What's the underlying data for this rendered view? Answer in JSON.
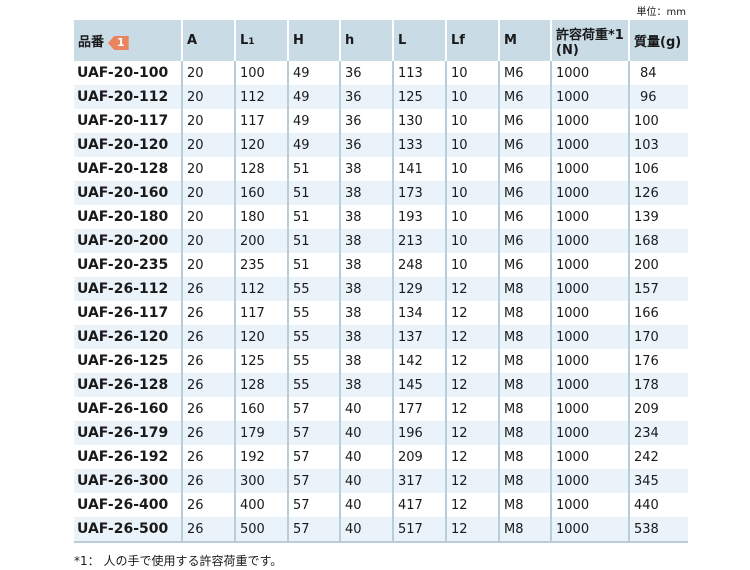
{
  "unit": "単位：mm",
  "headers": {
    "part": "品番",
    "badge": "1",
    "A": "A",
    "L1": "L",
    "L1sub": "1",
    "H": "H",
    "h": "h",
    "L": "L",
    "Lf": "Lf",
    "M": "M",
    "load": "許容荷重*1",
    "load_unit": "(N)",
    "mass": "質量(g)"
  },
  "rows": [
    [
      "UAF-20-100",
      "20",
      "100",
      "49",
      "36",
      "113",
      "10",
      "M6",
      "1000",
      "84"
    ],
    [
      "UAF-20-112",
      "20",
      "112",
      "49",
      "36",
      "125",
      "10",
      "M6",
      "1000",
      "96"
    ],
    [
      "UAF-20-117",
      "20",
      "117",
      "49",
      "36",
      "130",
      "10",
      "M6",
      "1000",
      "100"
    ],
    [
      "UAF-20-120",
      "20",
      "120",
      "49",
      "36",
      "133",
      "10",
      "M6",
      "1000",
      "103"
    ],
    [
      "UAF-20-128",
      "20",
      "128",
      "51",
      "38",
      "141",
      "10",
      "M6",
      "1000",
      "106"
    ],
    [
      "UAF-20-160",
      "20",
      "160",
      "51",
      "38",
      "173",
      "10",
      "M6",
      "1000",
      "126"
    ],
    [
      "UAF-20-180",
      "20",
      "180",
      "51",
      "38",
      "193",
      "10",
      "M6",
      "1000",
      "139"
    ],
    [
      "UAF-20-200",
      "20",
      "200",
      "51",
      "38",
      "213",
      "10",
      "M6",
      "1000",
      "168"
    ],
    [
      "UAF-20-235",
      "20",
      "235",
      "51",
      "38",
      "248",
      "10",
      "M6",
      "1000",
      "200"
    ],
    [
      "UAF-26-112",
      "26",
      "112",
      "55",
      "38",
      "129",
      "12",
      "M8",
      "1000",
      "157"
    ],
    [
      "UAF-26-117",
      "26",
      "117",
      "55",
      "38",
      "134",
      "12",
      "M8",
      "1000",
      "166"
    ],
    [
      "UAF-26-120",
      "26",
      "120",
      "55",
      "38",
      "137",
      "12",
      "M8",
      "1000",
      "170"
    ],
    [
      "UAF-26-125",
      "26",
      "125",
      "55",
      "38",
      "142",
      "12",
      "M8",
      "1000",
      "176"
    ],
    [
      "UAF-26-128",
      "26",
      "128",
      "55",
      "38",
      "145",
      "12",
      "M8",
      "1000",
      "178"
    ],
    [
      "UAF-26-160",
      "26",
      "160",
      "57",
      "40",
      "177",
      "12",
      "M8",
      "1000",
      "209"
    ],
    [
      "UAF-26-179",
      "26",
      "179",
      "57",
      "40",
      "196",
      "12",
      "M8",
      "1000",
      "234"
    ],
    [
      "UAF-26-192",
      "26",
      "192",
      "57",
      "40",
      "209",
      "12",
      "M8",
      "1000",
      "242"
    ],
    [
      "UAF-26-300",
      "26",
      "300",
      "57",
      "40",
      "317",
      "12",
      "M8",
      "1000",
      "345"
    ],
    [
      "UAF-26-400",
      "26",
      "400",
      "57",
      "40",
      "417",
      "12",
      "M8",
      "1000",
      "440"
    ],
    [
      "UAF-26-500",
      "26",
      "500",
      "57",
      "40",
      "517",
      "12",
      "M8",
      "1000",
      "538"
    ]
  ],
  "note": "*1：  人の手で使用する許容荷重です。"
}
